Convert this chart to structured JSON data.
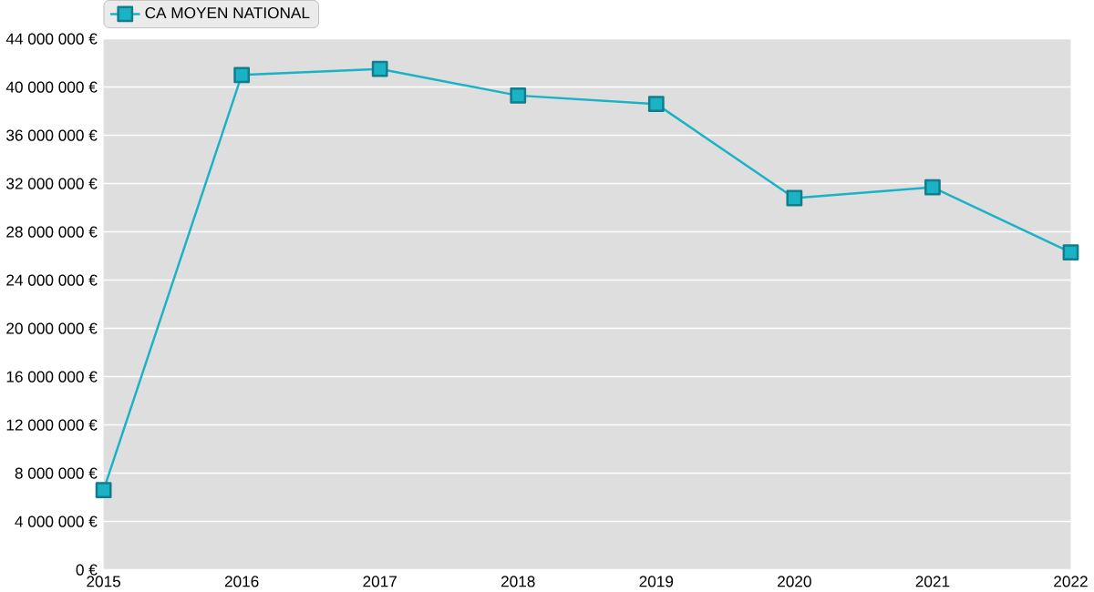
{
  "chart_data": {
    "type": "line",
    "x": [
      2015,
      2016,
      2017,
      2018,
      2019,
      2020,
      2021,
      2022
    ],
    "series": [
      {
        "name": "CA MOYEN NATIONAL",
        "color": "#1ab3c6",
        "values": [
          6600000,
          41000000,
          41500000,
          39300000,
          38600000,
          30800000,
          31700000,
          26300000
        ]
      }
    ],
    "xlim": [
      2015,
      2022
    ],
    "xticks": [
      2015,
      2016,
      2017,
      2018,
      2019,
      2020,
      2021,
      2022
    ],
    "ylim": [
      0,
      44000000
    ],
    "yticks": [
      {
        "value": 0,
        "label": "0 €"
      },
      {
        "value": 4000000,
        "label": "4 000 000 €"
      },
      {
        "value": 8000000,
        "label": "8 000 000 €"
      },
      {
        "value": 12000000,
        "label": "12 000 000 €"
      },
      {
        "value": 16000000,
        "label": "16 000 000 €"
      },
      {
        "value": 20000000,
        "label": "20 000 000 €"
      },
      {
        "value": 24000000,
        "label": "24 000 000 €"
      },
      {
        "value": 28000000,
        "label": "28 000 000 €"
      },
      {
        "value": 32000000,
        "label": "32 000 000 €"
      },
      {
        "value": 36000000,
        "label": "36 000 000 €"
      },
      {
        "value": 40000000,
        "label": "40 000 000 €"
      },
      {
        "value": 44000000,
        "label": "44 000 000 €"
      }
    ],
    "grid": "y",
    "legend": "top left",
    "marker": "square",
    "line_style": "solid"
  }
}
